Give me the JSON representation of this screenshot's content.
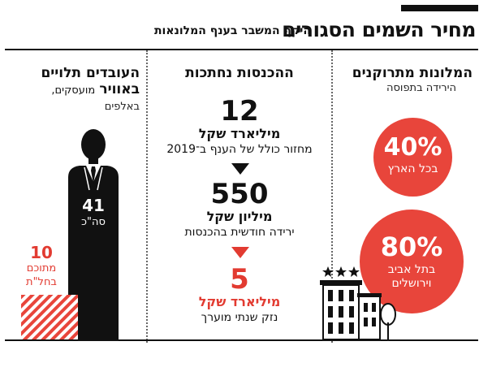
{
  "header": {
    "title": "מחיר השמים הסגורים",
    "subtitle": "היקף המשבר בענף המלונאות"
  },
  "columns": {
    "hotels": {
      "title": "המלונות מתרוקנים",
      "subtitle": "הירידה בתפוסה",
      "stats": [
        {
          "value": "40%",
          "label": "בכל הארץ"
        },
        {
          "value": "80%",
          "label_line1": "בתל אביב",
          "label_line2": "וירושלים"
        }
      ]
    },
    "revenue": {
      "title": "ההכנסות נחתכות",
      "stats": [
        {
          "value": "12",
          "unit": "מיליארד שקל",
          "desc": "מחזור כולל של הענף ב־2019"
        },
        {
          "value": "550",
          "unit": "מיליון שקל",
          "desc": "ירידה חודשית בהכנסות"
        },
        {
          "value": "5",
          "unit": "מיליארד שקל",
          "desc": "נזק שנתי מוערך"
        }
      ]
    },
    "workers": {
      "title_line1": "העובדים תלויים",
      "title_line2": "באוויר",
      "subtitle_line1": "מועסקים,",
      "subtitle_line2": "באלפים",
      "total": {
        "value": "41",
        "label": "סה\"כ"
      },
      "furloughed": {
        "value": "10",
        "label_line1": "מתוכם",
        "label_line2": "בחל\"ת"
      }
    }
  },
  "colors": {
    "accent": "#e8453b",
    "dark": "#111111"
  }
}
